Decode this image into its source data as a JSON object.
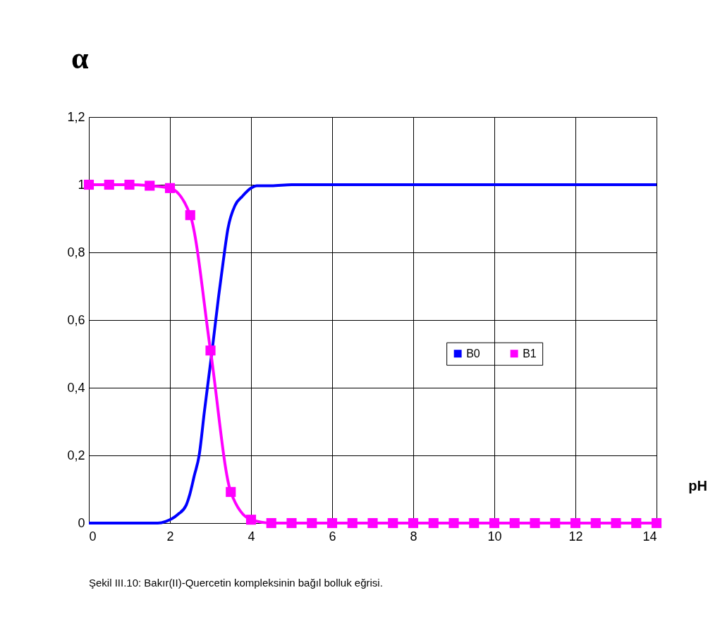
{
  "chart_data": {
    "type": "line",
    "ylabel": "α",
    "xlabel": "pH",
    "annotations": [
      "Şekil III.10: Bakır(II)-Quercetin kompleksinin bağıl bolluk eğrisi."
    ],
    "xlim": [
      0,
      14
    ],
    "xticks": [
      0,
      2,
      4,
      6,
      8,
      10,
      12,
      14
    ],
    "ylim": [
      0,
      1.2
    ],
    "yticks": [
      0,
      {
        "value": 0.2,
        "label": "0,2"
      },
      {
        "value": 0.4,
        "label": "0,4"
      },
      {
        "value": 0.6,
        "label": "0,6"
      },
      {
        "value": 0.8,
        "label": "0,8"
      },
      1,
      {
        "value": 1.2,
        "label": "1,2"
      }
    ],
    "grid": true,
    "legend": "right",
    "line_style": "solid",
    "series": [
      {
        "name": "B0",
        "color": "#0000ff",
        "marker": "none",
        "x": [
          0,
          1,
          1.7,
          1.9,
          2.19,
          2.4,
          2.49,
          2.6,
          2.72,
          2.85,
          3.05,
          3.2,
          3.31,
          3.43,
          3.61,
          3.78,
          4.0,
          4.14,
          4.5,
          5,
          6,
          8,
          10,
          12,
          14
        ],
        "values": [
          0,
          0,
          0,
          0.005,
          0.025,
          0.053,
          0.085,
          0.14,
          0.2,
          0.33,
          0.52,
          0.67,
          0.77,
          0.87,
          0.94,
          0.965,
          0.99,
          0.997,
          0.997,
          1,
          1,
          1,
          1,
          1,
          1
        ]
      },
      {
        "name": "B1",
        "color": "#ff00ff",
        "marker": "square",
        "x": [
          0,
          0.5,
          1,
          1.5,
          2,
          2.5,
          3,
          3.5,
          4,
          4.5,
          5,
          5.5,
          6,
          6.5,
          7,
          7.5,
          8,
          8.5,
          9,
          9.5,
          10,
          10.5,
          11,
          11.5,
          12,
          12.5,
          13,
          13.5,
          14
        ],
        "values": [
          1,
          1,
          1,
          0.997,
          0.99,
          0.91,
          0.51,
          0.092,
          0.01,
          0,
          0,
          0,
          0,
          0,
          0,
          0,
          0,
          0,
          0,
          0,
          0,
          0,
          0,
          0,
          0,
          0,
          0,
          0,
          0
        ]
      }
    ]
  }
}
